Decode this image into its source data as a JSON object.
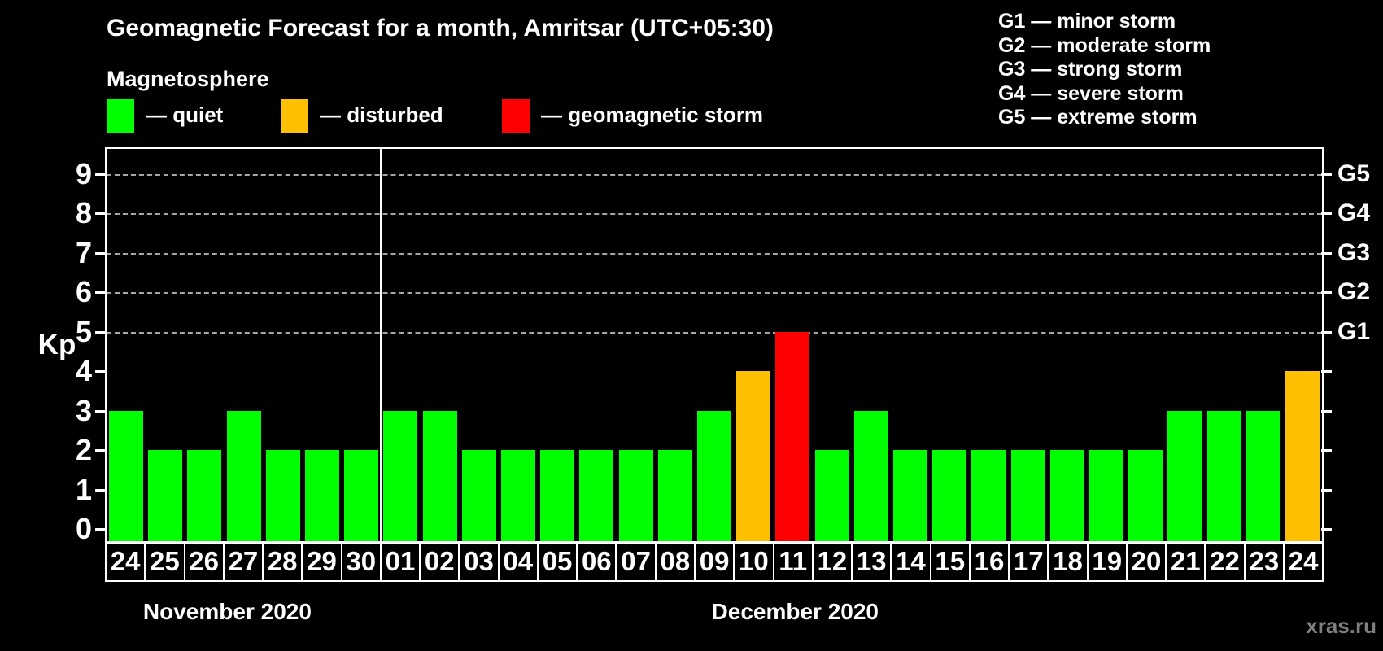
{
  "header": {
    "title": "Geomagnetic Forecast for a month, Amritsar (UTC+05:30)",
    "subtitle": "Magnetosphere",
    "watermark": "xras.ru"
  },
  "legend": {
    "items": [
      {
        "key": "quiet",
        "label": "— quiet"
      },
      {
        "key": "disturbed",
        "label": "— disturbed"
      },
      {
        "key": "storm",
        "label": "— geomagnetic storm"
      }
    ]
  },
  "g_legend": {
    "items": [
      "G1 — minor storm",
      "G2 — moderate storm",
      "G3 — strong storm",
      "G4 — severe storm",
      "G5 — extreme storm"
    ]
  },
  "colors": {
    "quiet": "#00ff00",
    "disturbed": "#fdc000",
    "storm": "#ff0000",
    "grid": "#a6a6a6",
    "axis": "#ffffff",
    "watermark": "#7f7f7f"
  },
  "chart_data": {
    "type": "bar",
    "title": "Geomagnetic Forecast for a month, Amritsar (UTC+05:30)",
    "xlabel": "",
    "ylabel": "Kp",
    "ylim": [
      0,
      9.5
    ],
    "y_ticks": [
      0,
      1,
      2,
      3,
      4,
      5,
      6,
      7,
      8,
      9
    ],
    "grid": "horizontal dashed at Kp 5-9",
    "legend_position": "top",
    "right_axis": [
      {
        "label": "G1",
        "kp": 5
      },
      {
        "label": "G2",
        "kp": 6
      },
      {
        "label": "G3",
        "kp": 7
      },
      {
        "label": "G4",
        "kp": 8
      },
      {
        "label": "G5",
        "kp": 9
      }
    ],
    "sections": [
      {
        "month": "November 2020",
        "bars": [
          {
            "day": "24",
            "kp": 3,
            "status": "quiet"
          },
          {
            "day": "25",
            "kp": 2,
            "status": "quiet"
          },
          {
            "day": "26",
            "kp": 2,
            "status": "quiet"
          },
          {
            "day": "27",
            "kp": 3,
            "status": "quiet"
          },
          {
            "day": "28",
            "kp": 2,
            "status": "quiet"
          },
          {
            "day": "29",
            "kp": 2,
            "status": "quiet"
          },
          {
            "day": "30",
            "kp": 2,
            "status": "quiet"
          }
        ]
      },
      {
        "month": "December 2020",
        "bars": [
          {
            "day": "01",
            "kp": 3,
            "status": "quiet"
          },
          {
            "day": "02",
            "kp": 3,
            "status": "quiet"
          },
          {
            "day": "03",
            "kp": 2,
            "status": "quiet"
          },
          {
            "day": "04",
            "kp": 2,
            "status": "quiet"
          },
          {
            "day": "05",
            "kp": 2,
            "status": "quiet"
          },
          {
            "day": "06",
            "kp": 2,
            "status": "quiet"
          },
          {
            "day": "07",
            "kp": 2,
            "status": "quiet"
          },
          {
            "day": "08",
            "kp": 2,
            "status": "quiet"
          },
          {
            "day": "09",
            "kp": 3,
            "status": "quiet"
          },
          {
            "day": "10",
            "kp": 4,
            "status": "disturbed"
          },
          {
            "day": "11",
            "kp": 5,
            "status": "storm"
          },
          {
            "day": "12",
            "kp": 2,
            "status": "quiet"
          },
          {
            "day": "13",
            "kp": 3,
            "status": "quiet"
          },
          {
            "day": "14",
            "kp": 2,
            "status": "quiet"
          },
          {
            "day": "15",
            "kp": 2,
            "status": "quiet"
          },
          {
            "day": "16",
            "kp": 2,
            "status": "quiet"
          },
          {
            "day": "17",
            "kp": 2,
            "status": "quiet"
          },
          {
            "day": "18",
            "kp": 2,
            "status": "quiet"
          },
          {
            "day": "19",
            "kp": 2,
            "status": "quiet"
          },
          {
            "day": "20",
            "kp": 2,
            "status": "quiet"
          },
          {
            "day": "21",
            "kp": 3,
            "status": "quiet"
          },
          {
            "day": "22",
            "kp": 3,
            "status": "quiet"
          },
          {
            "day": "23",
            "kp": 3,
            "status": "quiet"
          },
          {
            "day": "24",
            "kp": 4,
            "status": "disturbed"
          }
        ]
      }
    ]
  }
}
